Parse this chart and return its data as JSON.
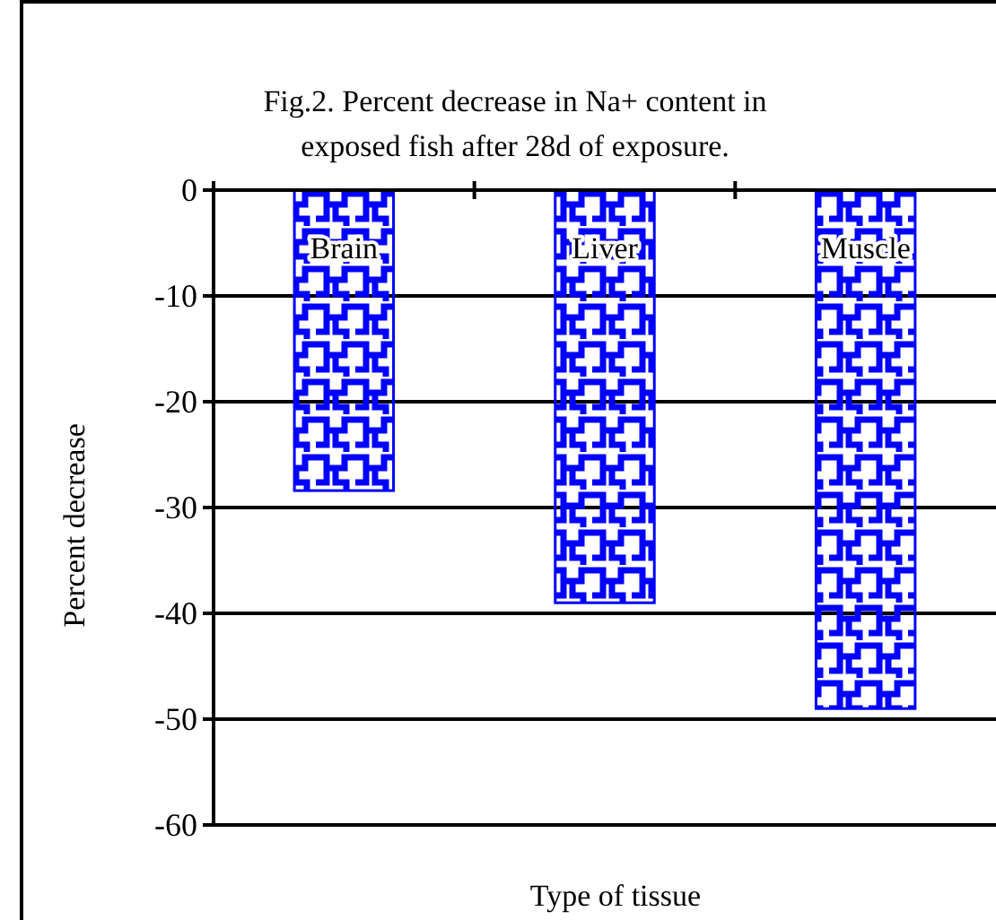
{
  "chart_data": {
    "type": "bar",
    "title": "Fig.2. Percent decrease in Na+ content in exposed fish after 28d of exposure.",
    "xlabel": "Type of tissue",
    "ylabel": "Percent decrease",
    "categories": [
      "Brain",
      "Liver",
      "Muscle"
    ],
    "values": [
      -28.4,
      -39,
      -49
    ],
    "color": "#0000ff",
    "ylim": [
      -60,
      0
    ],
    "yticks": [
      -60,
      -50,
      -40,
      -30,
      -20,
      -10,
      0
    ],
    "grid": "y"
  }
}
